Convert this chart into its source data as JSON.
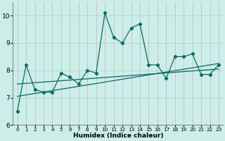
{
  "title": "",
  "xlabel": "Humidex (Indice chaleur)",
  "ylabel": "",
  "bg_color": "#cceee8",
  "line_color": "#006b6b",
  "grid_color_v": "#d4b8b8",
  "grid_color_h": "#a8d8d0",
  "xlim": [
    -0.5,
    23.5
  ],
  "ylim": [
    6,
    10.5
  ],
  "xticks": [
    0,
    1,
    2,
    3,
    4,
    5,
    6,
    7,
    8,
    9,
    10,
    11,
    12,
    13,
    14,
    15,
    16,
    17,
    18,
    19,
    20,
    21,
    22,
    23
  ],
  "yticks": [
    6,
    7,
    8,
    9,
    10
  ],
  "data_x": [
    0,
    1,
    2,
    3,
    4,
    5,
    6,
    7,
    8,
    9,
    10,
    11,
    12,
    13,
    14,
    15,
    16,
    17,
    18,
    19,
    20,
    21,
    22,
    23
  ],
  "data_y": [
    6.5,
    8.2,
    7.3,
    7.2,
    7.2,
    7.9,
    7.75,
    7.5,
    8.0,
    7.9,
    10.1,
    9.2,
    9.0,
    9.55,
    9.7,
    8.2,
    8.2,
    7.7,
    8.5,
    8.5,
    8.6,
    7.85,
    7.85,
    8.2
  ],
  "trend1_x": [
    0,
    23
  ],
  "trend1_y": [
    7.05,
    8.25
  ],
  "trend2_x": [
    0,
    23
  ],
  "trend2_y": [
    7.5,
    8.05
  ],
  "marker": "D",
  "markersize": 2.2,
  "linewidth": 0.9,
  "trend_linewidth": 0.9,
  "xlabel_fontsize": 6.5,
  "ytick_fontsize": 6.5,
  "xtick_fontsize": 5.2
}
